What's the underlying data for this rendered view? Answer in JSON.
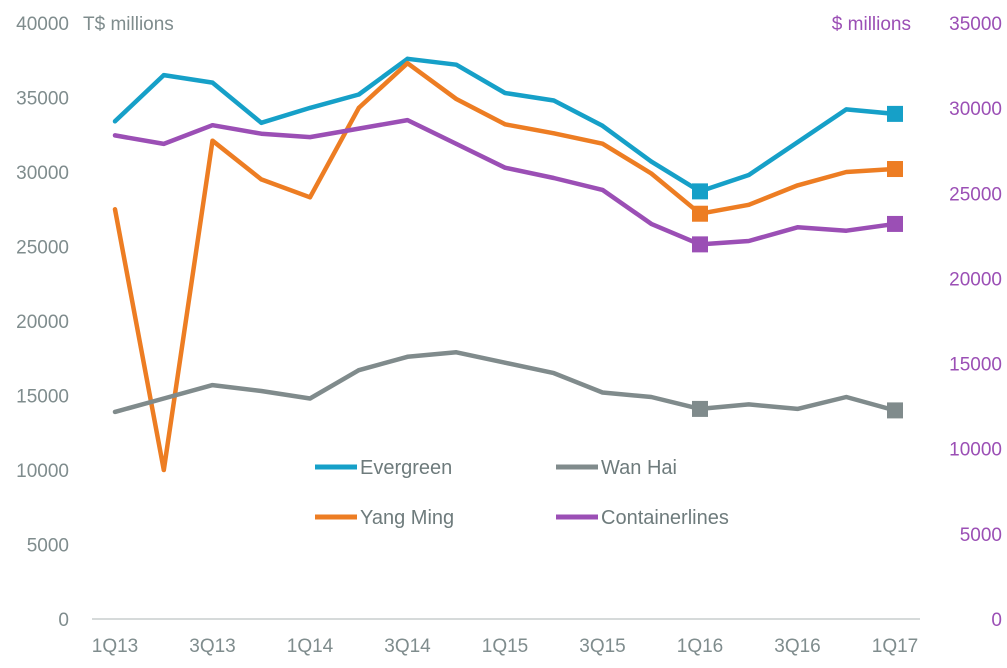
{
  "chart_data": {
    "type": "line",
    "left_axis_unit": "T$ millions",
    "right_axis_unit": "$ millions",
    "categories": [
      "1Q13",
      "2Q13",
      "3Q13",
      "4Q13",
      "1Q14",
      "2Q14",
      "3Q14",
      "4Q14",
      "1Q15",
      "2Q15",
      "3Q15",
      "4Q15",
      "1Q16",
      "2Q16",
      "3Q16",
      "4Q16",
      "1Q17"
    ],
    "x_tick_labels": [
      "1Q13",
      "3Q13",
      "1Q14",
      "3Q14",
      "1Q15",
      "3Q15",
      "1Q16",
      "3Q16",
      "1Q17"
    ],
    "y_left_ticks": [
      "0",
      "5000",
      "10000",
      "15000",
      "20000",
      "25000",
      "30000",
      "35000",
      "40000"
    ],
    "y_right_ticks": [
      "0",
      "5000",
      "10000",
      "15000",
      "20000",
      "25000",
      "30000",
      "35000"
    ],
    "ylim_left": [
      0,
      40000
    ],
    "ylim_right": [
      0,
      35000
    ],
    "series": [
      {
        "name": "Evergreen",
        "axis": "left",
        "color": "#16a0c8",
        "marker_indices": [
          12,
          16
        ],
        "values": [
          33400,
          36500,
          36000,
          33300,
          34300,
          35200,
          37600,
          37200,
          35300,
          34800,
          33100,
          30700,
          28700,
          29800,
          32000,
          34200,
          33900
        ]
      },
      {
        "name": "Yang Ming",
        "axis": "left",
        "color": "#ed7d23",
        "marker_indices": [
          12,
          16
        ],
        "values": [
          27500,
          10000,
          32100,
          29500,
          28300,
          34300,
          37300,
          34900,
          33200,
          32600,
          31900,
          29900,
          27200,
          27800,
          29100,
          30000,
          30200
        ]
      },
      {
        "name": "Wan Hai",
        "axis": "left",
        "color": "#808b8c",
        "marker_indices": [
          12,
          16
        ],
        "values": [
          13900,
          14800,
          15700,
          15300,
          14800,
          16700,
          17600,
          17900,
          17200,
          16500,
          15200,
          14900,
          14100,
          14400,
          14100,
          14900,
          14000
        ]
      },
      {
        "name": "Containerlines",
        "axis": "right",
        "color": "#9b4fb5",
        "marker_indices": [
          12,
          16
        ],
        "values": [
          28400,
          27900,
          29000,
          28500,
          28300,
          28800,
          29300,
          27900,
          26500,
          25900,
          25200,
          23200,
          22000,
          22200,
          23000,
          22800,
          23200
        ]
      }
    ],
    "legend": [
      "Evergreen",
      "Wan Hai",
      "Yang Ming",
      "Containerlines"
    ],
    "grid": false
  }
}
